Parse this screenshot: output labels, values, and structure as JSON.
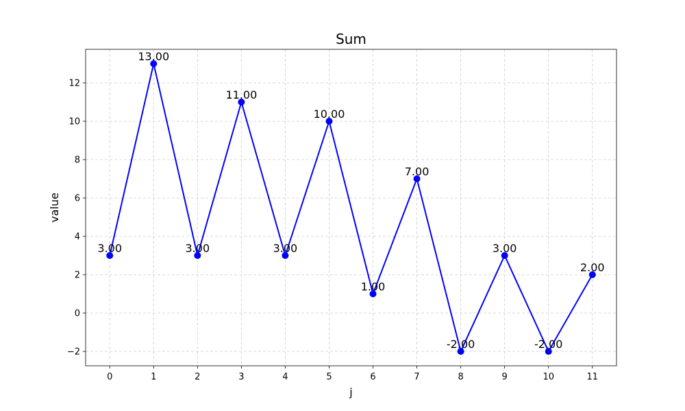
{
  "chart_data": {
    "type": "line",
    "title": "Sum",
    "xlabel": "j",
    "ylabel": "value",
    "x": [
      0,
      1,
      2,
      3,
      4,
      5,
      6,
      7,
      8,
      9,
      10,
      11
    ],
    "x_tick_labels": [
      "0",
      "1",
      "2",
      "3",
      "4",
      "5",
      "6",
      "7",
      "8",
      "9",
      "10",
      "11"
    ],
    "y_ticks": [
      -2,
      0,
      2,
      4,
      6,
      8,
      10,
      12
    ],
    "y_tick_labels": [
      "−2",
      "0",
      "2",
      "4",
      "6",
      "8",
      "10",
      "12"
    ],
    "xlim": [
      -0.55,
      11.55
    ],
    "ylim": [
      -2.75,
      13.75
    ],
    "grid": true,
    "series": [
      {
        "values": [
          3,
          13,
          3,
          11,
          3,
          10,
          1,
          7,
          -2,
          3,
          -2,
          2
        ],
        "data_labels": [
          "3.00",
          "13.00",
          "3.00",
          "11.00",
          "3.00",
          "10.00",
          "1.00",
          "7.00",
          "-2.00",
          "3.00",
          "-2.00",
          "2.00"
        ],
        "color": "#0000ff",
        "marker": "circle"
      }
    ]
  }
}
